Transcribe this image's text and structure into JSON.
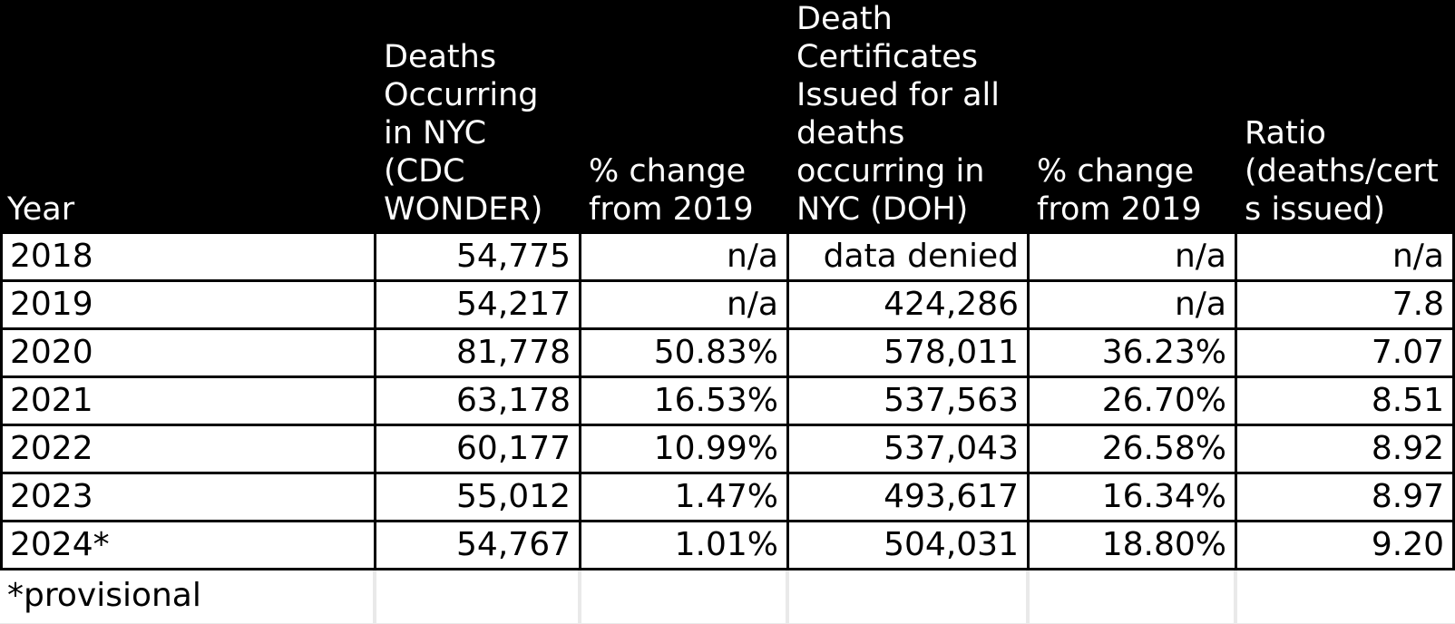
{
  "table": {
    "columns": [
      {
        "label": "Year"
      },
      {
        "label": "Deaths\nOccurring\nin NYC\n(CDC\nWONDER)"
      },
      {
        "label": "% change\nfrom 2019"
      },
      {
        "label": "Death\nCertificates\nIssued for all\ndeaths\noccurring in\nNYC (DOH)"
      },
      {
        "label": "% change\nfrom 2019"
      },
      {
        "label": "Ratio\n(deaths/cert\ns issued)"
      }
    ],
    "rows": [
      [
        "2018",
        "54,775",
        "n/a",
        "data denied",
        "n/a",
        "n/a"
      ],
      [
        "2019",
        "54,217",
        "n/a",
        "424,286",
        "n/a",
        "7.8"
      ],
      [
        "2020",
        "81,778",
        "50.83%",
        "578,011",
        "36.23%",
        "7.07"
      ],
      [
        "2021",
        "63,178",
        "16.53%",
        "537,563",
        "26.70%",
        "8.51"
      ],
      [
        "2022",
        "60,177",
        "10.99%",
        "537,043",
        "26.58%",
        "8.92"
      ],
      [
        "2023",
        "55,012",
        "1.47%",
        "493,617",
        "16.34%",
        "8.97"
      ],
      [
        "2024*",
        "54,767",
        "1.01%",
        "504,031",
        "18.80%",
        "9.20"
      ]
    ],
    "footnote": "*provisional",
    "colors": {
      "header_bg": "#000000",
      "header_text": "#ffffff",
      "body_bg": "#ffffff",
      "body_text": "#000000",
      "grid_border": "#000000",
      "footnote_grid_border": "#e9e9e9"
    }
  }
}
